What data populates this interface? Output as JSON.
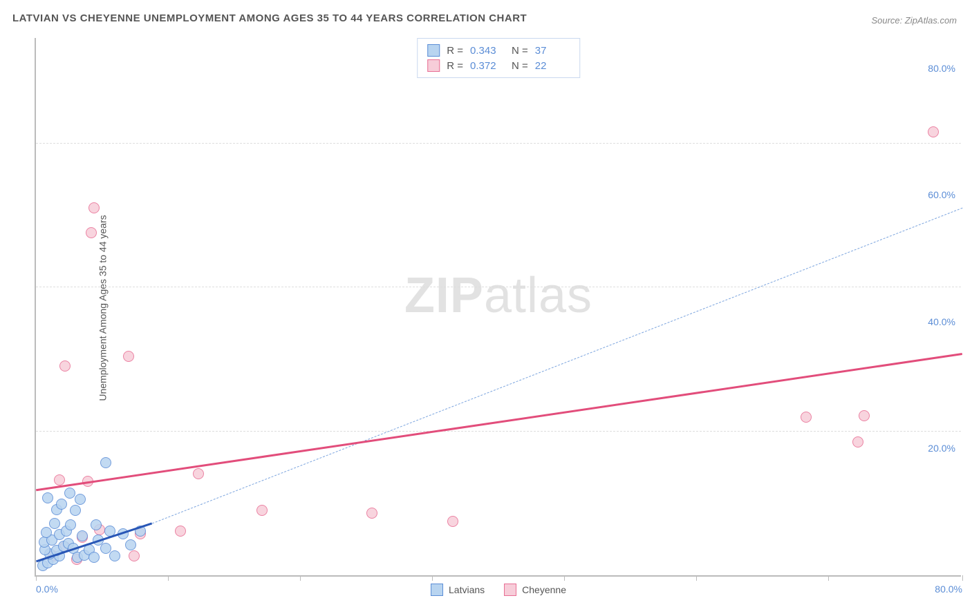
{
  "title": "LATVIAN VS CHEYENNE UNEMPLOYMENT AMONG AGES 35 TO 44 YEARS CORRELATION CHART",
  "source": "Source: ZipAtlas.com",
  "ylabel": "Unemployment Among Ages 35 to 44 years",
  "watermark_a": "ZIP",
  "watermark_b": "atlas",
  "chart": {
    "type": "scatter",
    "xlim": [
      0,
      80
    ],
    "ylim": [
      0,
      85
    ],
    "x_ticks": [
      0,
      11.4,
      22.8,
      34.2,
      45.6,
      57.0,
      68.4,
      80
    ],
    "y_gridlines": [
      22.7,
      45.4,
      68.1
    ],
    "x_axis_labels": [
      {
        "val": 0,
        "text": "0.0%"
      },
      {
        "val": 80,
        "text": "80.0%"
      }
    ],
    "y_axis_labels": [
      {
        "val": 20,
        "text": "20.0%"
      },
      {
        "val": 40,
        "text": "40.0%"
      },
      {
        "val": 60,
        "text": "60.0%"
      },
      {
        "val": 80,
        "text": "80.0%"
      }
    ],
    "background_color": "#ffffff",
    "grid_color": "#dddddd",
    "axis_color": "#bbbbbb",
    "series": [
      {
        "name": "Latvians",
        "fill": "#b8d4f0",
        "stroke": "#5b8dd6",
        "r_value": "0.343",
        "n_value": "37",
        "trend": {
          "x1": 0,
          "y1": 2.2,
          "x2": 10,
          "y2": 8.2,
          "color": "#2856b6",
          "width": 3,
          "dash": false
        },
        "trend_ext": {
          "x1": 10,
          "y1": 8.2,
          "x2": 80,
          "y2": 58,
          "color": "#7ba4de",
          "width": 1.5,
          "dash": true
        },
        "points": [
          [
            0.6,
            1.5
          ],
          [
            1.0,
            2.0
          ],
          [
            1.5,
            2.5
          ],
          [
            2.0,
            3.0
          ],
          [
            1.2,
            3.4
          ],
          [
            0.8,
            4.0
          ],
          [
            1.8,
            3.9
          ],
          [
            2.4,
            4.6
          ],
          [
            0.7,
            5.2
          ],
          [
            2.8,
            5.0
          ],
          [
            1.4,
            5.6
          ],
          [
            3.2,
            4.3
          ],
          [
            2.0,
            6.4
          ],
          [
            0.9,
            6.8
          ],
          [
            3.6,
            2.8
          ],
          [
            4.2,
            3.2
          ],
          [
            2.6,
            7.0
          ],
          [
            1.6,
            8.2
          ],
          [
            3.0,
            8.0
          ],
          [
            4.6,
            4.0
          ],
          [
            5.0,
            2.8
          ],
          [
            4.0,
            6.2
          ],
          [
            1.8,
            10.4
          ],
          [
            2.2,
            11.2
          ],
          [
            1.0,
            12.2
          ],
          [
            3.4,
            10.2
          ],
          [
            2.9,
            13.0
          ],
          [
            5.4,
            5.6
          ],
          [
            6.0,
            4.2
          ],
          [
            6.8,
            3.0
          ],
          [
            5.2,
            8.0
          ],
          [
            3.8,
            12.0
          ],
          [
            6.4,
            7.0
          ],
          [
            6.0,
            17.8
          ],
          [
            7.5,
            6.5
          ],
          [
            8.2,
            4.8
          ],
          [
            9.0,
            7.0
          ]
        ]
      },
      {
        "name": "Cheyenne",
        "fill": "#f7cdd9",
        "stroke": "#e86e94",
        "r_value": "0.372",
        "n_value": "22",
        "trend": {
          "x1": 0,
          "y1": 13.5,
          "x2": 80,
          "y2": 35,
          "color": "#e24d7b",
          "width": 2.5,
          "dash": false
        },
        "points": [
          [
            1.5,
            3.0
          ],
          [
            2.5,
            4.5
          ],
          [
            3.5,
            2.5
          ],
          [
            4.0,
            6.0
          ],
          [
            5.5,
            7.2
          ],
          [
            8.5,
            3.0
          ],
          [
            4.5,
            14.8
          ],
          [
            9.0,
            6.5
          ],
          [
            12.5,
            7.0
          ],
          [
            19.5,
            10.2
          ],
          [
            29.0,
            9.8
          ],
          [
            36.0,
            8.5
          ],
          [
            2.0,
            15.0
          ],
          [
            2.5,
            33.0
          ],
          [
            8.0,
            34.5
          ],
          [
            14.0,
            16.0
          ],
          [
            4.8,
            54.0
          ],
          [
            5.0,
            58.0
          ],
          [
            66.5,
            25.0
          ],
          [
            71.5,
            25.2
          ],
          [
            71.0,
            21.0
          ],
          [
            77.5,
            70.0
          ]
        ]
      }
    ]
  },
  "stat_legend_cols": {
    "r": "R =",
    "n": "N ="
  }
}
